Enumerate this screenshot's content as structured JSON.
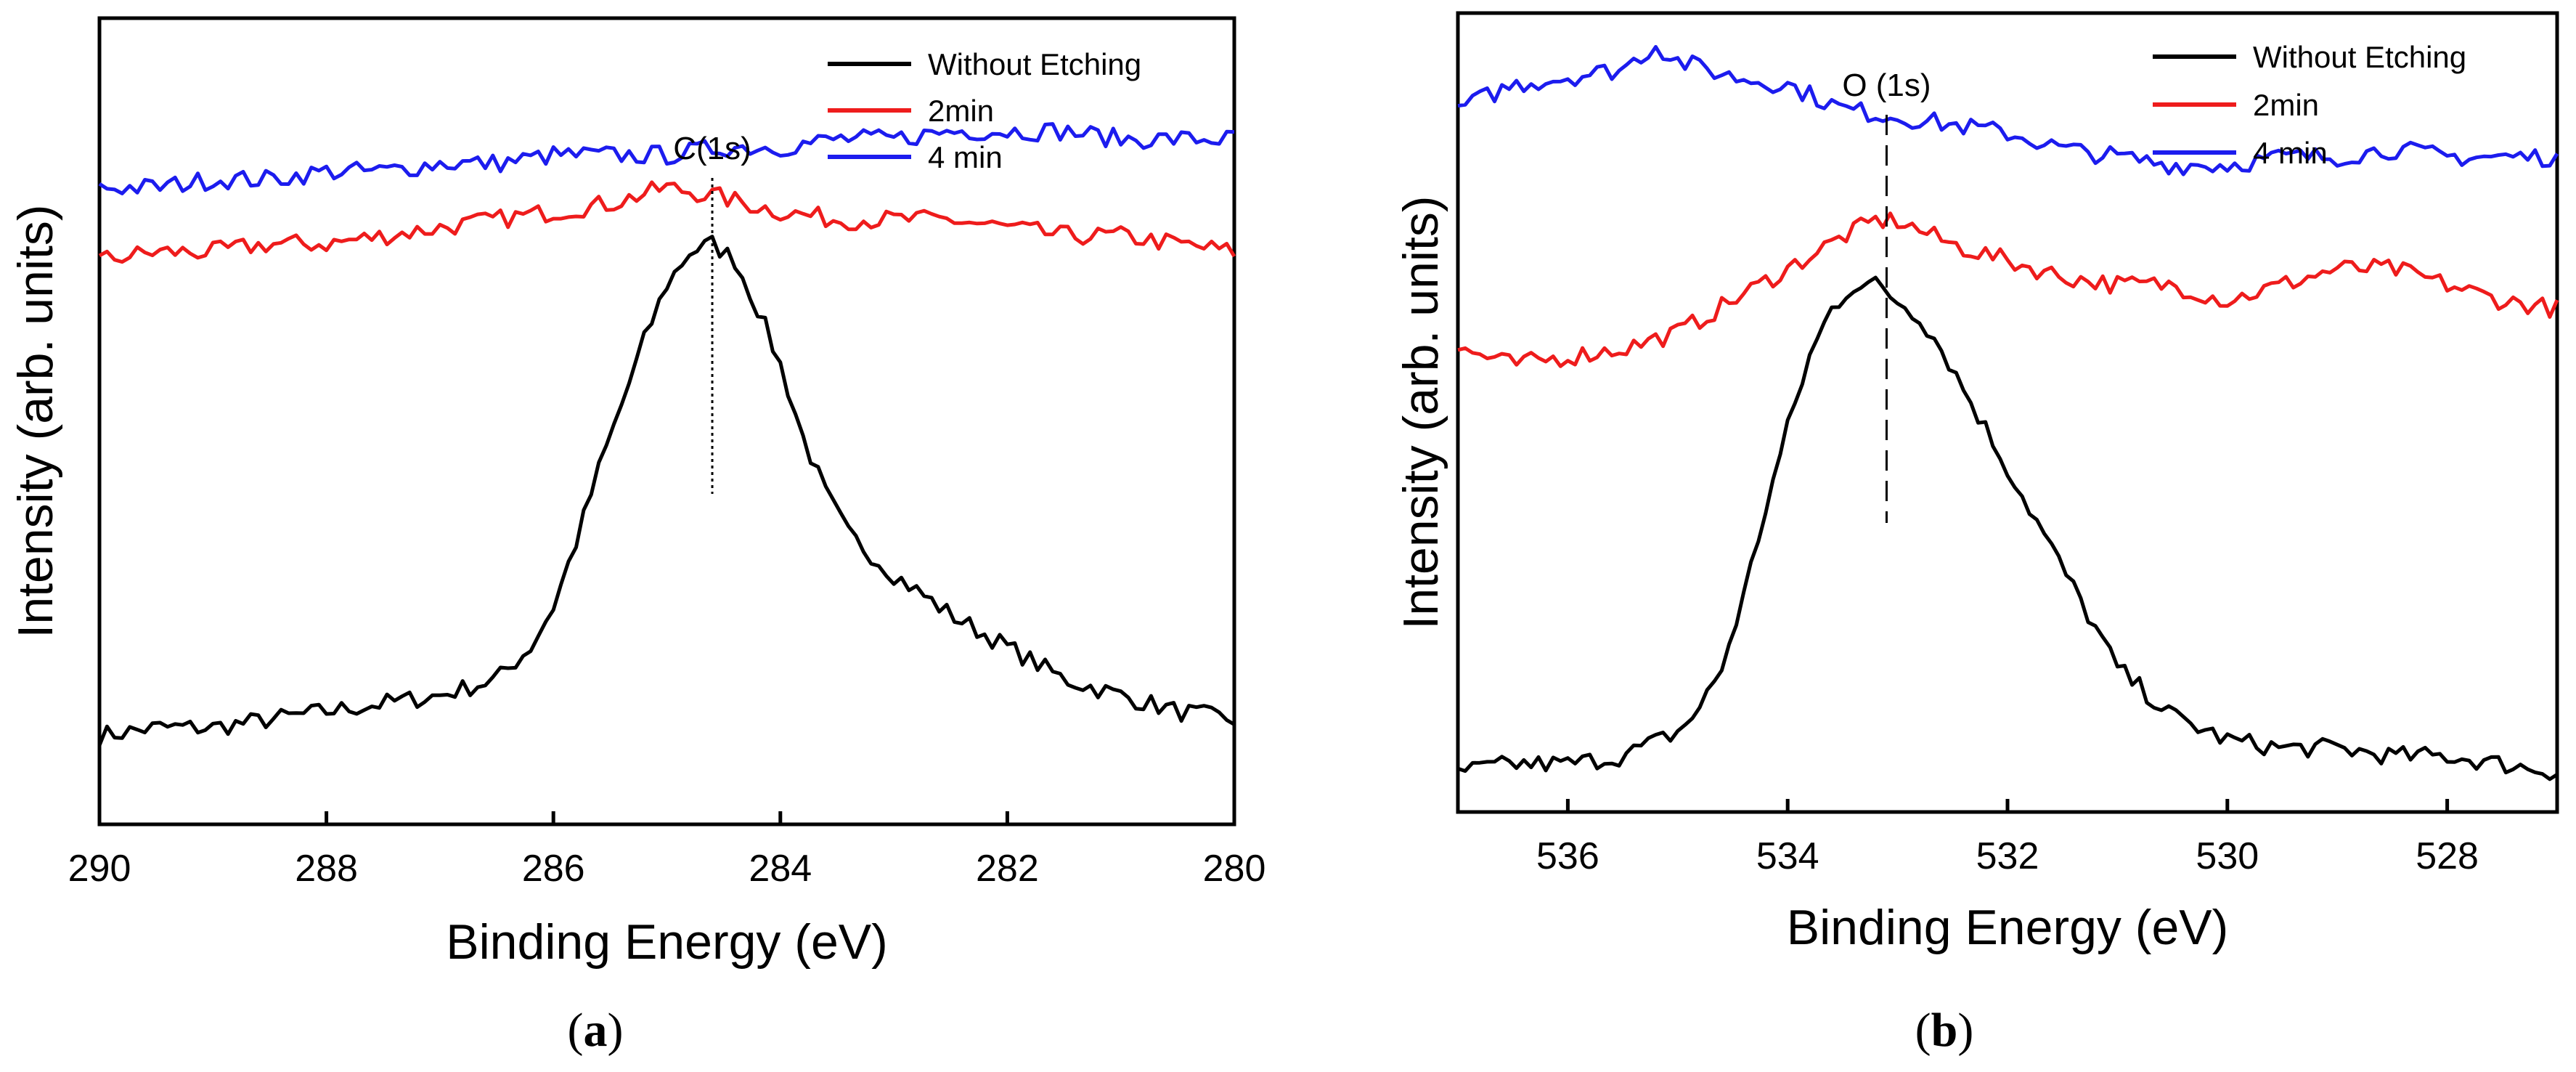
{
  "chart_data": [
    {
      "id": "a",
      "type": "line",
      "panel_label": "a",
      "title": "",
      "xlabel": "Binding Energy (eV)",
      "ylabel": "Intensity (arb. units)",
      "xlim": [
        290,
        280
      ],
      "x_reversed": true,
      "ylim": [
        0,
        1
      ],
      "y_ticks_shown": false,
      "xticks": [
        290,
        288,
        286,
        284,
        282,
        280
      ],
      "legend_position": "top-right",
      "annotation": {
        "text": "C(1s)",
        "x": 284.6,
        "line_style": "dotted"
      },
      "series": [
        {
          "name": "Without Etching",
          "color": "#000000",
          "x": [
            290.0,
            289.5,
            289.0,
            288.5,
            288.0,
            287.5,
            287.0,
            286.5,
            286.2,
            286.0,
            285.8,
            285.6,
            285.4,
            285.2,
            285.0,
            284.8,
            284.6,
            284.4,
            284.2,
            284.0,
            283.8,
            283.6,
            283.4,
            283.0,
            282.5,
            282.0,
            281.5,
            281.0,
            280.5,
            280.0
          ],
          "values": [
            0.11,
            0.12,
            0.12,
            0.13,
            0.14,
            0.15,
            0.16,
            0.18,
            0.22,
            0.27,
            0.35,
            0.44,
            0.52,
            0.6,
            0.67,
            0.71,
            0.72,
            0.7,
            0.64,
            0.57,
            0.48,
            0.41,
            0.36,
            0.31,
            0.26,
            0.22,
            0.18,
            0.16,
            0.14,
            0.13
          ]
        },
        {
          "name": "2min",
          "color": "#ee1c1c",
          "x": [
            290.0,
            289.5,
            289.0,
            288.5,
            288.0,
            287.5,
            287.0,
            286.5,
            286.0,
            285.5,
            285.0,
            284.6,
            284.3,
            284.0,
            283.5,
            283.0,
            282.5,
            282.0,
            281.5,
            281.0,
            280.5,
            280.0
          ],
          "values": [
            0.7,
            0.71,
            0.71,
            0.72,
            0.72,
            0.73,
            0.74,
            0.75,
            0.76,
            0.77,
            0.79,
            0.78,
            0.77,
            0.76,
            0.75,
            0.75,
            0.75,
            0.74,
            0.73,
            0.73,
            0.72,
            0.71
          ]
        },
        {
          "name": "4 min",
          "color": "#1c1cee",
          "x": [
            290.0,
            289.5,
            289.0,
            288.5,
            288.0,
            287.5,
            287.0,
            286.5,
            286.0,
            285.5,
            285.0,
            284.5,
            284.0,
            283.5,
            283.0,
            282.5,
            282.0,
            281.5,
            281.0,
            280.5,
            280.0
          ],
          "values": [
            0.79,
            0.79,
            0.8,
            0.8,
            0.81,
            0.81,
            0.82,
            0.82,
            0.83,
            0.83,
            0.83,
            0.84,
            0.84,
            0.85,
            0.85,
            0.86,
            0.86,
            0.86,
            0.85,
            0.85,
            0.85
          ]
        }
      ]
    },
    {
      "id": "b",
      "type": "line",
      "panel_label": "b",
      "title": "",
      "xlabel": "Binding Energy (eV)",
      "ylabel": "Intensity (arb. units)",
      "xlim": [
        537,
        527
      ],
      "x_reversed": true,
      "ylim": [
        0,
        1
      ],
      "y_ticks_shown": false,
      "xticks": [
        536,
        534,
        532,
        530,
        528
      ],
      "legend_position": "top-right",
      "annotation": {
        "text": "O (1s)",
        "x": 533.1,
        "line_style": "dashed"
      },
      "series": [
        {
          "name": "Without Etching",
          "color": "#000000",
          "x": [
            537.0,
            536.5,
            536.0,
            535.5,
            535.0,
            534.8,
            534.6,
            534.4,
            534.2,
            534.0,
            533.8,
            533.6,
            533.4,
            533.2,
            533.0,
            532.8,
            532.6,
            532.4,
            532.2,
            532.0,
            531.8,
            531.6,
            531.4,
            531.2,
            531.0,
            530.5,
            530.0,
            529.5,
            529.0,
            528.5,
            528.0,
            527.5,
            527.0
          ],
          "values": [
            0.05,
            0.06,
            0.06,
            0.07,
            0.1,
            0.13,
            0.18,
            0.27,
            0.38,
            0.48,
            0.57,
            0.63,
            0.66,
            0.66,
            0.64,
            0.62,
            0.58,
            0.53,
            0.48,
            0.43,
            0.38,
            0.33,
            0.28,
            0.23,
            0.18,
            0.12,
            0.09,
            0.08,
            0.08,
            0.07,
            0.07,
            0.06,
            0.05
          ]
        },
        {
          "name": "2min",
          "color": "#ee1c1c",
          "x": [
            537.0,
            536.5,
            536.0,
            535.5,
            535.0,
            534.5,
            534.0,
            533.5,
            533.2,
            533.0,
            532.5,
            532.0,
            531.5,
            531.0,
            530.5,
            530.0,
            529.5,
            529.0,
            528.5,
            528.0,
            527.5,
            527.0
          ],
          "values": [
            0.58,
            0.56,
            0.57,
            0.58,
            0.6,
            0.64,
            0.68,
            0.72,
            0.74,
            0.74,
            0.71,
            0.69,
            0.67,
            0.66,
            0.66,
            0.64,
            0.66,
            0.68,
            0.68,
            0.66,
            0.64,
            0.63
          ]
        },
        {
          "name": "4 min",
          "color": "#1c1cee",
          "x": [
            537.0,
            536.5,
            536.0,
            535.5,
            535.2,
            535.0,
            534.5,
            534.0,
            533.5,
            533.0,
            532.5,
            532.0,
            531.5,
            531.0,
            530.5,
            530.0,
            529.5,
            529.0,
            528.5,
            528.0,
            527.5,
            527.0
          ],
          "values": [
            0.88,
            0.91,
            0.92,
            0.93,
            0.96,
            0.94,
            0.92,
            0.91,
            0.88,
            0.87,
            0.86,
            0.85,
            0.83,
            0.82,
            0.81,
            0.81,
            0.82,
            0.82,
            0.83,
            0.82,
            0.82,
            0.82
          ]
        }
      ]
    }
  ]
}
